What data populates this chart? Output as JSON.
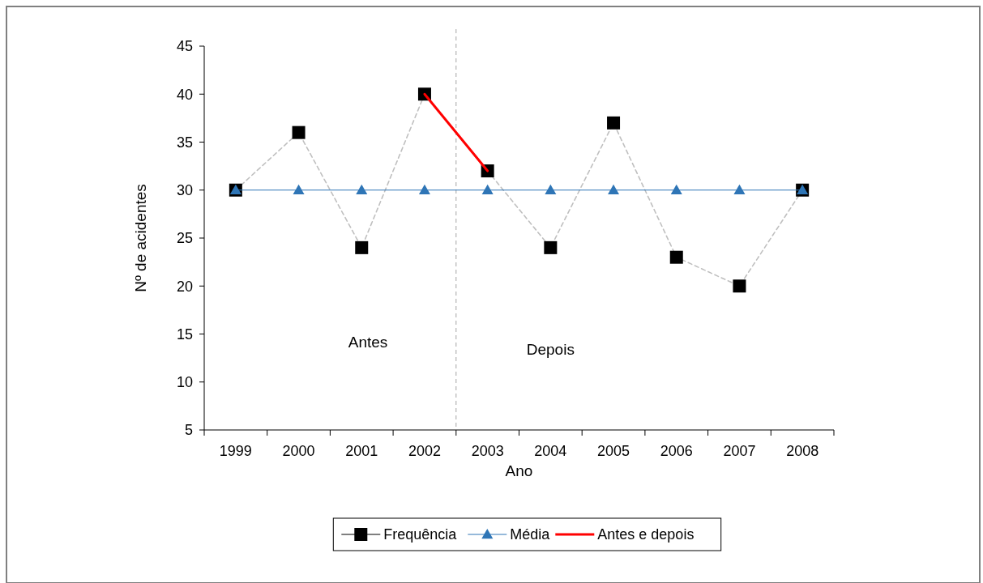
{
  "chart_data": {
    "type": "line",
    "xlabel": "Ano",
    "ylabel": "Nº de acidentes",
    "x": [
      1999,
      2000,
      2001,
      2002,
      2003,
      2004,
      2005,
      2006,
      2007,
      2008
    ],
    "xlim": [
      1998.5,
      2008.5
    ],
    "xticks": [
      1999,
      2000,
      2001,
      2002,
      2003,
      2004,
      2005,
      2006,
      2007,
      2008
    ],
    "ylim": [
      5,
      45
    ],
    "yticks": [
      5,
      10,
      15,
      20,
      25,
      30,
      35,
      40,
      45
    ],
    "series": [
      {
        "name": "Frequência",
        "color": "#000000",
        "marker": "square",
        "line_style": "dashed",
        "values": [
          30,
          36,
          24,
          40,
          32,
          24,
          37,
          23,
          20,
          30
        ]
      },
      {
        "name": "Média",
        "color": "#2e75b6",
        "marker": "triangle",
        "line_style": "solid",
        "values": [
          30,
          30,
          30,
          30,
          30,
          30,
          30,
          30,
          30,
          30
        ]
      },
      {
        "name": "Antes e depois",
        "color": "#ff0000",
        "marker": "none",
        "line_style": "solid",
        "x": [
          2002,
          2003
        ],
        "values": [
          40,
          32
        ]
      }
    ],
    "ref_lines": [
      {
        "axis": "x",
        "value": 2002.5,
        "color": "#a6a6a6",
        "line_style": "dashed"
      }
    ],
    "annotations": [
      "Antes",
      "Depois"
    ],
    "grid": false,
    "legend": "bottom"
  }
}
